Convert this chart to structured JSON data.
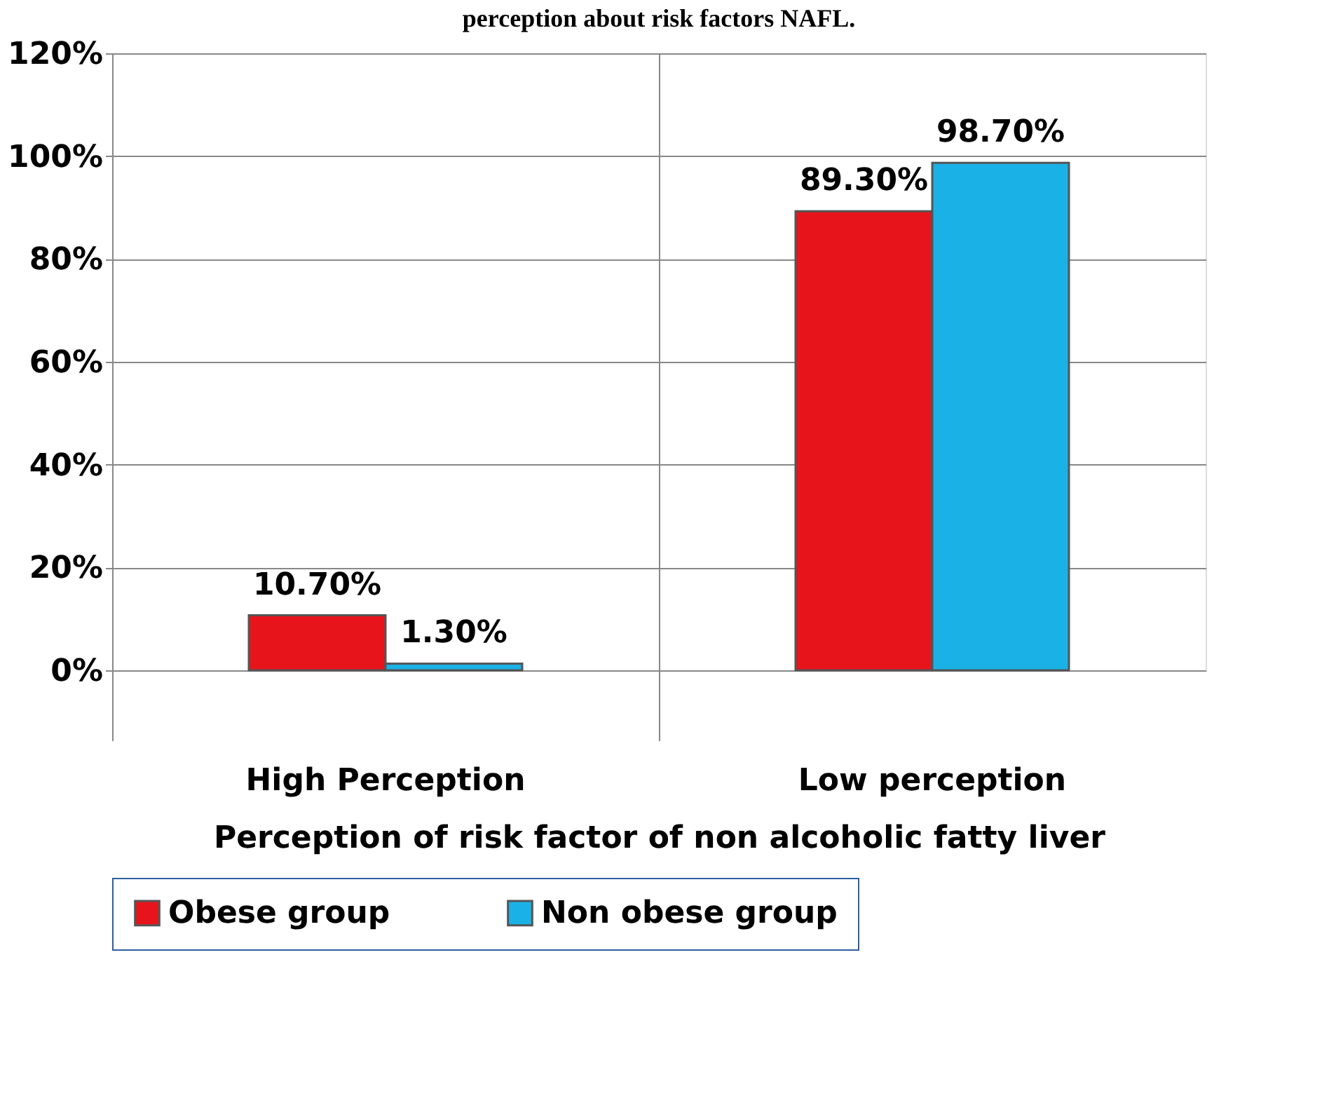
{
  "chart_data": {
    "type": "bar",
    "title": "perception about risk factors NAFL.",
    "xlabel": "Perception of risk factor of non alcoholic fatty liver",
    "categories": [
      "High Perception",
      "Low perception"
    ],
    "series": [
      {
        "name": "Obese group",
        "color": "#e8141c",
        "values": [
          10.7,
          89.3
        ],
        "value_labels": [
          "10.70%",
          "89.30%"
        ]
      },
      {
        "name": "Non obese group",
        "color": "#1ab2e6",
        "values": [
          1.3,
          98.7
        ],
        "value_labels": [
          "1.30%",
          "98.70%"
        ]
      }
    ],
    "ylim": [
      0,
      120
    ],
    "yticks": [
      {
        "value": 0,
        "label": "0%"
      },
      {
        "value": 20,
        "label": "20%"
      },
      {
        "value": 40,
        "label": "40%"
      },
      {
        "value": 60,
        "label": "60%"
      },
      {
        "value": 80,
        "label": "80%"
      },
      {
        "value": 100,
        "label": "100%"
      },
      {
        "value": 120,
        "label": "120%"
      }
    ],
    "grid": "y",
    "legend": "bottom"
  }
}
